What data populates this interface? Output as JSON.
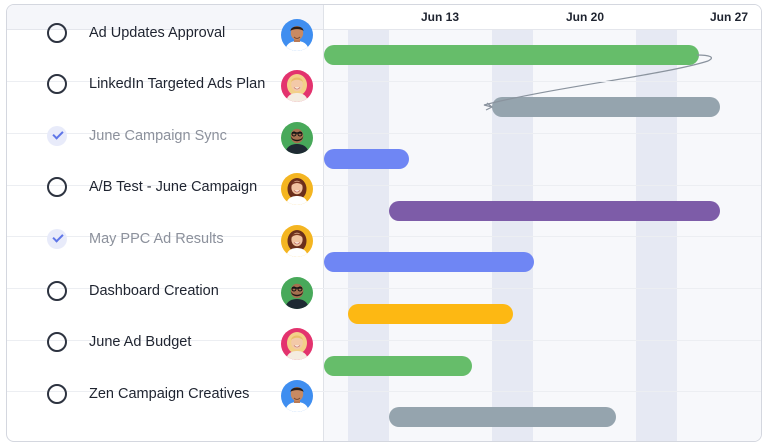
{
  "timeline": {
    "weeks": [
      "Jun 13",
      "Jun 20",
      "Jun 27"
    ]
  },
  "tasks": [
    {
      "name": "Ad Updates Approval",
      "done": false,
      "assignee": "avatar-blue-man",
      "bar_color": "#66bd6a"
    },
    {
      "name": "LinkedIn Targeted Ads Plan",
      "done": false,
      "assignee": "avatar-pink-woman",
      "bar_color": "#95a4ae"
    },
    {
      "name": "June Campaign Sync",
      "done": true,
      "assignee": "avatar-green-bearded-man",
      "bar_color": "#6f86f4"
    },
    {
      "name": "A/B Test - June Campaign",
      "done": false,
      "assignee": "avatar-yellow-woman",
      "bar_color": "#7d5ca8"
    },
    {
      "name": "May PPC Ad Results",
      "done": true,
      "assignee": "avatar-yellow-woman",
      "bar_color": "#6f86f4"
    },
    {
      "name": "Dashboard Creation",
      "done": false,
      "assignee": "avatar-green-bearded-man",
      "bar_color": "#fdb813"
    },
    {
      "name": "June Ad Budget",
      "done": false,
      "assignee": "avatar-pink-woman",
      "bar_color": "#66bd6a"
    },
    {
      "name": "Zen Campaign Creatives",
      "done": false,
      "assignee": "avatar-blue-man",
      "bar_color": "#95a4ae"
    }
  ]
}
